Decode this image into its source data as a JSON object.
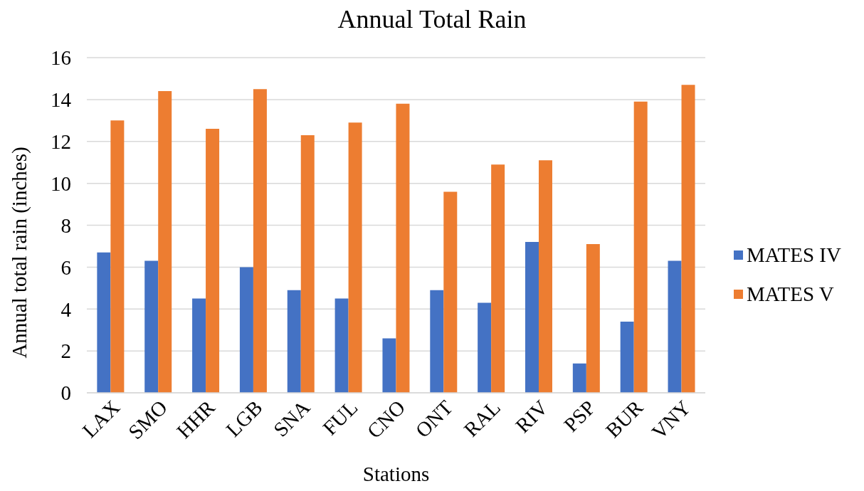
{
  "chart_data": {
    "type": "bar",
    "title": "Annual Total Rain",
    "xlabel": "Stations",
    "ylabel": "Annual total rain (inches)",
    "categories": [
      "LAX",
      "SMO",
      "HHR",
      "LGB",
      "SNA",
      "FUL",
      "CNO",
      "ONT",
      "RAL",
      "RIV",
      "PSP",
      "BUR",
      "VNY"
    ],
    "series": [
      {
        "name": "MATES IV",
        "color": "#4472c4",
        "values": [
          6.7,
          6.3,
          4.5,
          6.0,
          4.9,
          4.5,
          2.6,
          4.9,
          4.3,
          7.2,
          1.4,
          3.4,
          6.3
        ]
      },
      {
        "name": "MATES V",
        "color": "#ed7d31",
        "values": [
          13.0,
          14.4,
          12.6,
          14.5,
          12.3,
          12.9,
          13.8,
          9.6,
          10.9,
          11.1,
          7.1,
          13.9,
          14.7
        ]
      }
    ],
    "ylim": [
      0,
      16
    ],
    "yticks": [
      0,
      2,
      4,
      6,
      8,
      10,
      12,
      14,
      16
    ],
    "grid": "y",
    "legend": "right"
  }
}
